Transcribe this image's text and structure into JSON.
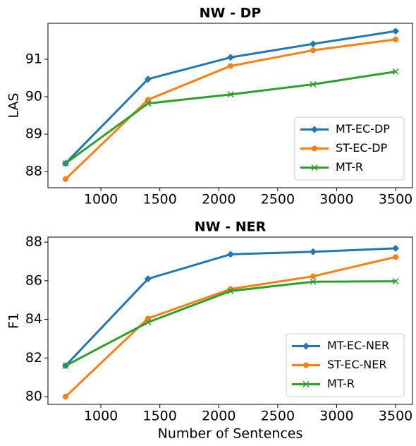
{
  "chart_data": [
    {
      "type": "line",
      "title": "NW - DP",
      "y_label": "LAS",
      "x": [
        700,
        1400,
        2100,
        2800,
        3500
      ],
      "series": [
        {
          "name": "MT-EC-DP",
          "color": "#1f77b4",
          "marker": "diamond",
          "values": [
            88.22,
            90.47,
            91.05,
            91.41,
            91.75
          ]
        },
        {
          "name": "ST-EC-DP",
          "color": "#ff7f0e",
          "marker": "circle",
          "values": [
            87.8,
            89.92,
            90.82,
            91.24,
            91.53
          ]
        },
        {
          "name": "MT-R",
          "color": "#2ca02c",
          "marker": "x",
          "values": [
            88.22,
            89.82,
            90.06,
            90.33,
            90.67
          ]
        }
      ],
      "xlim": [
        551,
        3643
      ],
      "xticks": [
        1000,
        1500,
        2000,
        2500,
        3000,
        3500
      ],
      "ylim": [
        87.57,
        91.96
      ],
      "yticks": [
        88,
        89,
        90,
        91
      ],
      "legend": "lower right"
    },
    {
      "type": "line",
      "title": "NW - NER",
      "y_label": "F1",
      "x_label": "Number of Sentences",
      "x": [
        700,
        1400,
        2100,
        2800,
        3500
      ],
      "series": [
        {
          "name": "MT-EC-NER",
          "color": "#1f77b4",
          "marker": "diamond",
          "values": [
            81.6,
            86.1,
            87.37,
            87.5,
            87.68
          ]
        },
        {
          "name": "ST-EC-NER",
          "color": "#ff7f0e",
          "marker": "circle",
          "values": [
            80.0,
            84.05,
            85.57,
            86.23,
            87.23
          ]
        },
        {
          "name": "MT-R",
          "color": "#2ca02c",
          "marker": "x",
          "values": [
            81.6,
            83.85,
            85.47,
            85.95,
            85.97
          ]
        }
      ],
      "xlim": [
        551,
        3643
      ],
      "xticks": [
        1000,
        1500,
        2000,
        2500,
        3000,
        3500
      ],
      "ylim": [
        79.6,
        88.26
      ],
      "yticks": [
        80,
        82,
        84,
        86,
        88
      ],
      "legend": "lower right"
    }
  ]
}
